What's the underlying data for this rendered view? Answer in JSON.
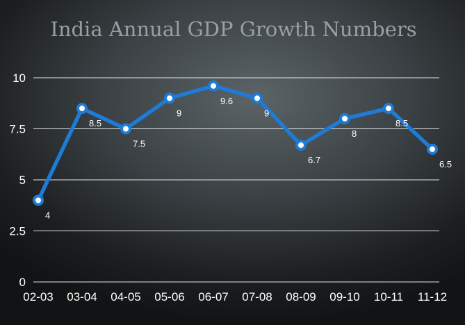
{
  "chart_data": {
    "type": "line",
    "title": "India Annual GDP Growth Numbers",
    "categories": [
      "02-03",
      "03-04",
      "04-05",
      "05-06",
      "06-07",
      "07-08",
      "08-09",
      "09-10",
      "10-11",
      "11-12"
    ],
    "series": [
      {
        "values": [
          4,
          8.5,
          7.5,
          9,
          9.6,
          9,
          6.7,
          8,
          8.5,
          6.5
        ],
        "data_labels": [
          "4",
          "8.5",
          "7.5",
          "9",
          "9.6",
          "9",
          "6.7",
          "8",
          "8.5",
          "6.5"
        ],
        "color": "#1e7bd6"
      }
    ],
    "yticks": [
      "0",
      "2.5",
      "5",
      "7.5",
      "10"
    ],
    "ylim": [
      0,
      10
    ],
    "grid": true,
    "legend": "none"
  }
}
